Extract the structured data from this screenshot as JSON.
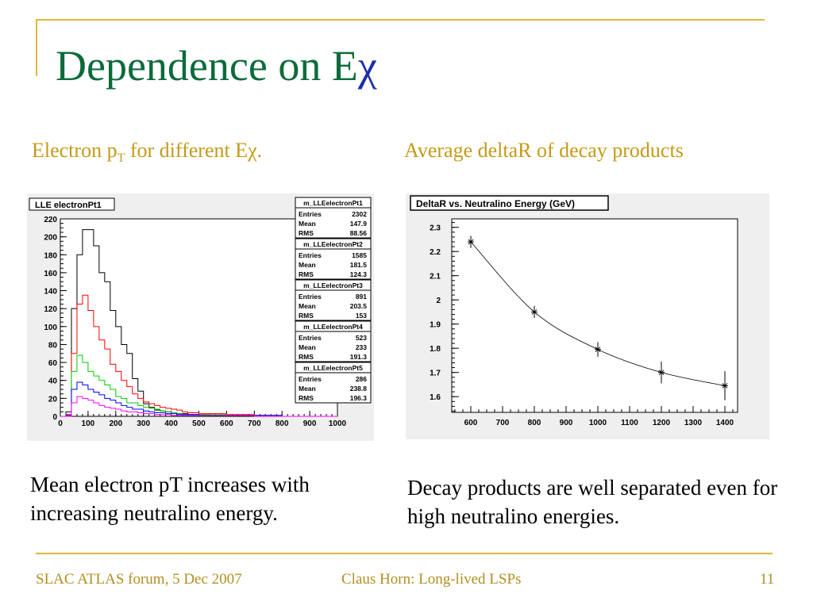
{
  "slide": {
    "title_prefix": "Dependence on E",
    "title_symbol": "χ",
    "colors": {
      "title": "#0b6b3a",
      "symbol": "#1a2ea8",
      "caption": "#c49a18",
      "rule": "#e3b83a"
    },
    "left": {
      "caption_pre": "Electron p",
      "caption_sub": "T",
      "caption_post": " for different Eχ.",
      "body": "Mean electron pT increases with increasing neutralino energy."
    },
    "right": {
      "caption": "Average deltaR of decay products",
      "body": "Decay products are well separated even for high neutralino energies."
    },
    "footer": {
      "left": "SLAC ATLAS forum, 5 Dec 2007",
      "center": "Claus Horn: Long-lived LSPs",
      "page": "11"
    }
  },
  "chart_data": [
    {
      "type": "line",
      "title": "LLE electronPt1",
      "xlim": [
        0,
        1000
      ],
      "ylim": [
        0,
        220
      ],
      "xticks": [
        "0",
        "100",
        "200",
        "300",
        "400",
        "500",
        "600",
        "700",
        "800",
        "900",
        "1000"
      ],
      "yticks": [
        "0",
        "20",
        "40",
        "60",
        "80",
        "100",
        "120",
        "140",
        "160",
        "180",
        "200",
        "220"
      ],
      "bin_edges": [
        0,
        20,
        40,
        60,
        80,
        100,
        120,
        140,
        160,
        180,
        200,
        220,
        240,
        260,
        280,
        300,
        320,
        340,
        360,
        380,
        400,
        420,
        440,
        460,
        480,
        500,
        540,
        600,
        700,
        800,
        900,
        1000
      ],
      "series": [
        {
          "name": "m_LLEelectronPt1",
          "color": "#000000",
          "entries": "2302",
          "mean": "147.9",
          "rms": "88.56",
          "values": [
            0,
            5,
            120,
            180,
            208,
            208,
            190,
            160,
            150,
            118,
            100,
            80,
            70,
            42,
            28,
            14,
            10,
            7,
            6,
            5,
            4,
            3,
            3,
            2,
            2,
            2,
            1,
            1,
            0,
            0,
            0
          ]
        },
        {
          "name": "m_LLEelectronPt2",
          "color": "#ff0000",
          "entries": "1585",
          "mean": "181.5",
          "rms": "124.3",
          "values": [
            0,
            2,
            70,
            125,
            135,
            118,
            100,
            85,
            75,
            58,
            50,
            40,
            33,
            25,
            20,
            16,
            14,
            12,
            10,
            9,
            8,
            7,
            5,
            4,
            4,
            3,
            3,
            2,
            1,
            0,
            0
          ]
        },
        {
          "name": "m_LLEelectronPt3",
          "color": "#00cc00",
          "entries": "891",
          "mean": "203.5",
          "rms": "153",
          "values": [
            0,
            1,
            50,
            68,
            60,
            50,
            45,
            40,
            35,
            30,
            22,
            20,
            15,
            15,
            12,
            10,
            9,
            8,
            6,
            5,
            4,
            3,
            2,
            2,
            2,
            2,
            2,
            1,
            1,
            0,
            0
          ]
        },
        {
          "name": "m_LLEelectronPt4",
          "color": "#0000ff",
          "entries": "523",
          "mean": "233",
          "rms": "191.3",
          "values": [
            0,
            1,
            30,
            38,
            35,
            30,
            27,
            24,
            20,
            18,
            15,
            12,
            10,
            8,
            8,
            6,
            5,
            4,
            4,
            3,
            3,
            2,
            2,
            2,
            2,
            1,
            1,
            1,
            1,
            0,
            0
          ]
        },
        {
          "name": "m_LLEelectronPt5",
          "color": "#ff00ff",
          "entries": "286",
          "mean": "238.8",
          "rms": "196.3",
          "values": [
            0,
            0,
            15,
            22,
            20,
            18,
            15,
            12,
            10,
            9,
            8,
            6,
            5,
            5,
            4,
            3,
            3,
            2,
            2,
            2,
            1,
            1,
            1,
            1,
            1,
            1,
            1,
            1,
            0,
            0,
            0
          ]
        }
      ]
    },
    {
      "type": "scatter",
      "title": "DeltaR vs. Neutralino Energy (GeV)",
      "xlim": [
        540,
        1440
      ],
      "ylim": [
        1.535,
        2.335
      ],
      "xticks": [
        "600",
        "700",
        "800",
        "900",
        "1000",
        "1100",
        "1200",
        "1300",
        "1400"
      ],
      "yticks": [
        "1.6",
        "1.7",
        "1.8",
        "1.9",
        "2",
        "2.1",
        "2.2",
        "2.3"
      ],
      "points": [
        {
          "x": 600,
          "y": 2.24,
          "err": 0.025
        },
        {
          "x": 800,
          "y": 1.95,
          "err": 0.025
        },
        {
          "x": 1000,
          "y": 1.795,
          "err": 0.03
        },
        {
          "x": 1200,
          "y": 1.7,
          "err": 0.045
        },
        {
          "x": 1400,
          "y": 1.645,
          "err": 0.06
        }
      ],
      "fit_curve": true
    }
  ]
}
